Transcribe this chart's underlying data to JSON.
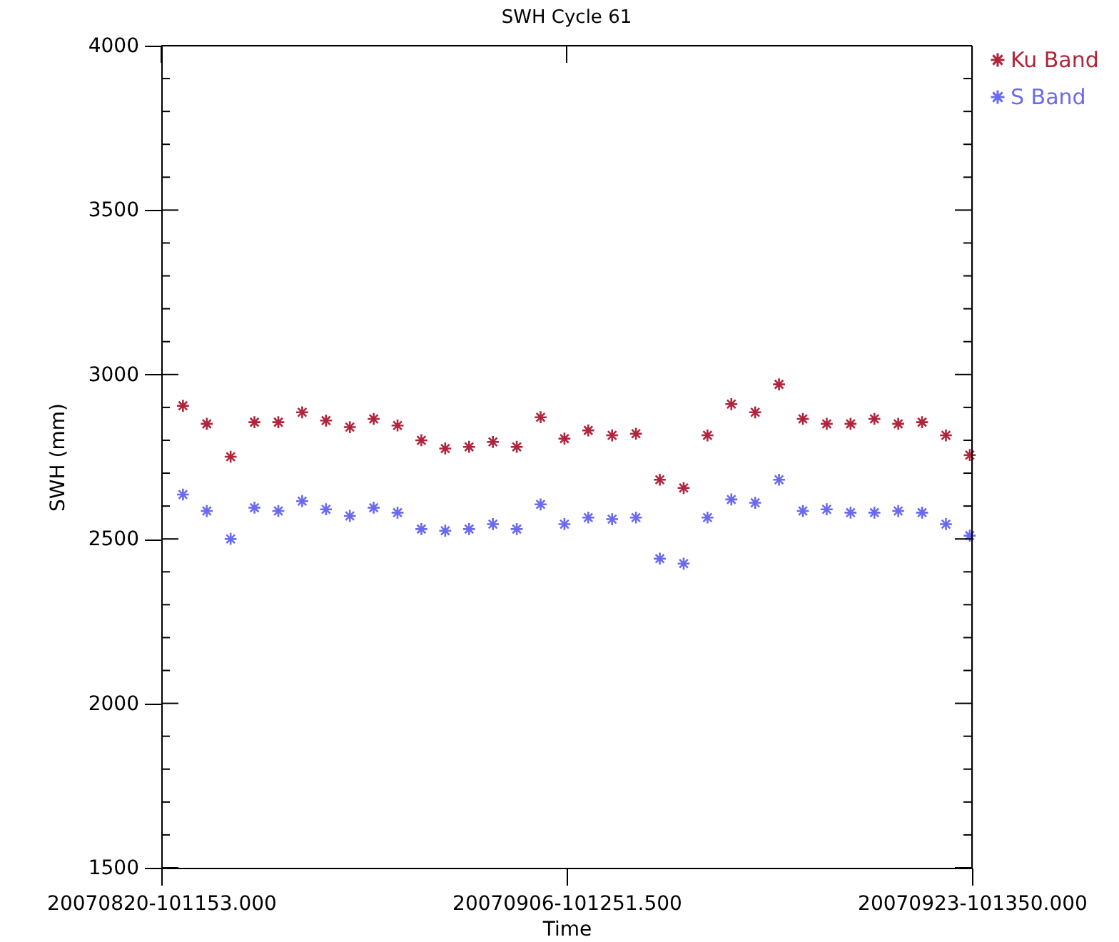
{
  "chart_data": {
    "type": "scatter",
    "title": "SWH Cycle 61",
    "xlabel": "Time",
    "ylabel": "SWH (mm)",
    "x": [
      "2007-08-21T08:00",
      "2007-08-22T08:00",
      "2007-08-23T08:00",
      "2007-08-24T08:00",
      "2007-08-25T08:00",
      "2007-08-26T08:00",
      "2007-08-27T08:00",
      "2007-08-28T08:00",
      "2007-08-29T08:00",
      "2007-08-30T08:00",
      "2007-08-31T08:00",
      "2007-09-01T08:00",
      "2007-09-02T08:00",
      "2007-09-03T08:00",
      "2007-09-04T08:00",
      "2007-09-05T08:00",
      "2007-09-06T08:00",
      "2007-09-07T08:00",
      "2007-09-08T08:00",
      "2007-09-09T08:00",
      "2007-09-10T08:00",
      "2007-09-11T08:00",
      "2007-09-12T08:00",
      "2007-09-13T08:00",
      "2007-09-14T08:00",
      "2007-09-15T08:00",
      "2007-09-16T08:00",
      "2007-09-17T08:00",
      "2007-09-18T08:00",
      "2007-09-19T08:00",
      "2007-09-20T08:00",
      "2007-09-21T08:00",
      "2007-09-22T08:00",
      "2007-09-23T08:00"
    ],
    "series": [
      {
        "name": "Ku Band",
        "color": "#b0243c",
        "values": [
          2905,
          2850,
          2750,
          2855,
          2855,
          2885,
          2860,
          2840,
          2865,
          2845,
          2800,
          2775,
          2780,
          2795,
          2780,
          2870,
          2805,
          2830,
          2815,
          2820,
          2680,
          2655,
          2815,
          2910,
          2885,
          2970,
          2865,
          2850,
          2850,
          2865,
          2850,
          2855,
          2815,
          2755
        ]
      },
      {
        "name": "S Band",
        "color": "#6a6af0",
        "values": [
          2635,
          2585,
          2500,
          2595,
          2585,
          2615,
          2590,
          2570,
          2595,
          2580,
          2530,
          2525,
          2530,
          2545,
          2530,
          2605,
          2545,
          2565,
          2560,
          2565,
          2440,
          2425,
          2565,
          2620,
          2610,
          2680,
          2585,
          2590,
          2580,
          2580,
          2585,
          2580,
          2545,
          2510
        ]
      }
    ],
    "xlim": [
      "2007-08-20T10:12",
      "2007-09-23T10:14"
    ],
    "xticks": [
      {
        "value": "2007-08-20T10:12",
        "label": "20070820-101153.000"
      },
      {
        "value": "2007-09-06T10:13",
        "label": "20070906-101251.500"
      },
      {
        "value": "2007-09-23T10:14",
        "label": "20070923-101350.000"
      }
    ],
    "ylim": [
      1500,
      4000
    ],
    "yticks": [
      1500,
      {
        "value": 1600,
        "label": null
      },
      {
        "value": 1700,
        "label": null
      },
      {
        "value": 1800,
        "label": null
      },
      {
        "value": 1900,
        "label": null
      },
      2000,
      {
        "value": 2100,
        "label": null
      },
      {
        "value": 2200,
        "label": null
      },
      {
        "value": 2300,
        "label": null
      },
      {
        "value": 2400,
        "label": null
      },
      2500,
      {
        "value": 2600,
        "label": null
      },
      {
        "value": 2700,
        "label": null
      },
      {
        "value": 2800,
        "label": null
      },
      {
        "value": 2900,
        "label": null
      },
      3000,
      {
        "value": 3100,
        "label": null
      },
      {
        "value": 3200,
        "label": null
      },
      {
        "value": 3300,
        "label": null
      },
      {
        "value": 3400,
        "label": null
      },
      3500,
      {
        "value": 3600,
        "label": null
      },
      {
        "value": 3700,
        "label": null
      },
      {
        "value": 3800,
        "label": null
      },
      {
        "value": 3900,
        "label": null
      },
      4000
    ],
    "grid": false,
    "legend": "top right",
    "marker": "cross"
  }
}
